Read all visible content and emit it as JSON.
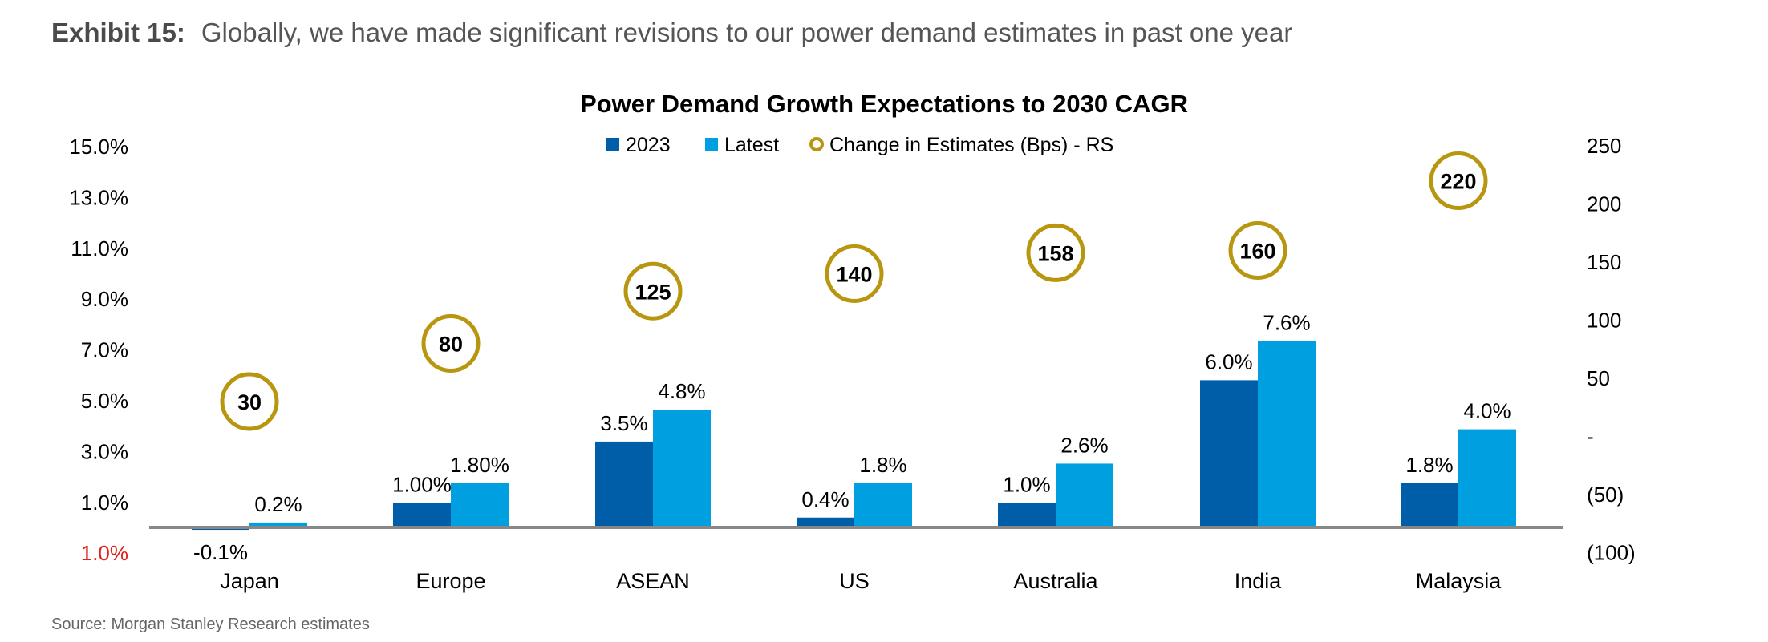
{
  "header": {
    "exhibit_label": "Exhibit 15:",
    "exhibit_title": "Globally, we have made significant revisions to our power demand estimates in past one year"
  },
  "source": "Source: Morgan Stanley Research estimates",
  "colors": {
    "series_2023": "#005ea8",
    "series_latest": "#00a0e0",
    "estimate_circle": "#b8960f",
    "axis": "#888888",
    "negative_tick": "#e0201b"
  },
  "chart_data": {
    "type": "bar",
    "title": "Power Demand Growth Expectations to 2030 CAGR",
    "categories": [
      "Japan",
      "Europe",
      "ASEAN",
      "US",
      "Australia",
      "India",
      "Malaysia"
    ],
    "series": [
      {
        "name": "2023",
        "values": [
          -0.1,
          1.0,
          3.5,
          0.4,
          1.0,
          6.0,
          1.8
        ],
        "labels": [
          "-0.1%",
          "1.00%",
          "3.5%",
          "0.4%",
          "1.0%",
          "6.0%",
          "1.8%"
        ]
      },
      {
        "name": "Latest",
        "values": [
          0.2,
          1.8,
          4.8,
          1.8,
          2.6,
          7.6,
          4.0
        ],
        "labels": [
          "0.2%",
          "1.80%",
          "4.8%",
          "1.8%",
          "2.6%",
          "7.6%",
          "4.0%"
        ]
      }
    ],
    "secondary_series": {
      "name": "Change in Estimates (Bps) - RS",
      "type": "scatter",
      "values": [
        30,
        80,
        125,
        140,
        158,
        160,
        220
      ],
      "labels": [
        "30",
        "80",
        "125",
        "140",
        "158",
        "160",
        "220"
      ]
    },
    "y_left": {
      "ticks": [
        "15.0%",
        "13.0%",
        "11.0%",
        "9.0%",
        "7.0%",
        "5.0%",
        "3.0%",
        "1.0%",
        "1.0%"
      ],
      "negative_tick_index": 8
    },
    "y_right": {
      "ticks": [
        "250",
        "200",
        "150",
        "100",
        "50",
        "-",
        "(50)",
        "(100)"
      ],
      "range": [
        -100,
        250
      ]
    },
    "legend_placement": "top-center",
    "grid": false
  }
}
